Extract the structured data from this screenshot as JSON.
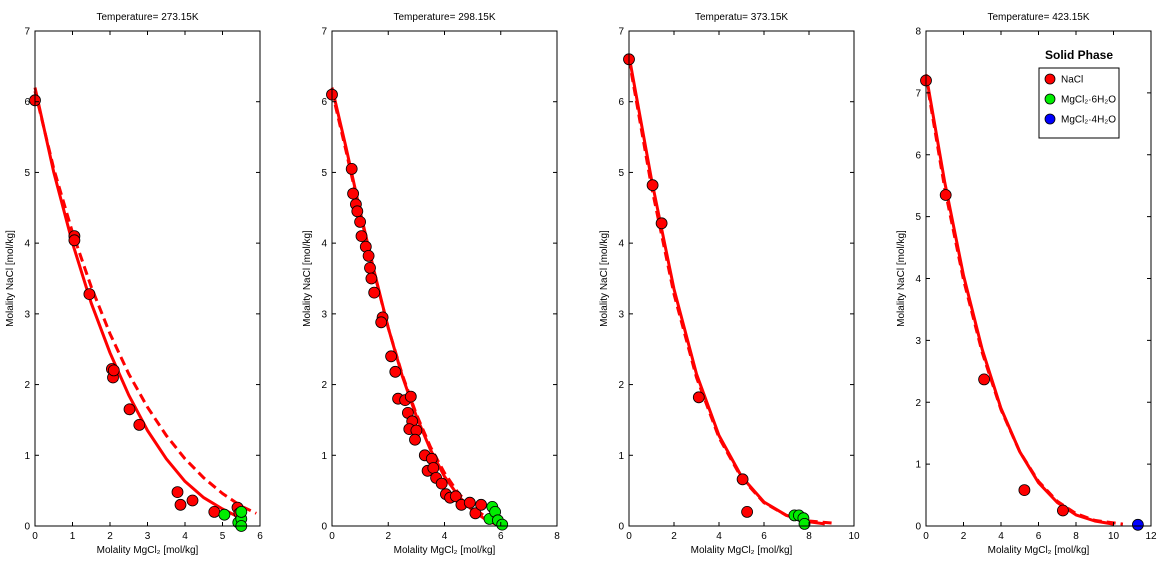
{
  "colors": {
    "nacl": "#ff0000",
    "mgcl2_6h2o": "#00ee00",
    "mgcl2_4h2o": "#0000ff",
    "model_line": "#ff0000"
  },
  "legend": {
    "title": "Solid Phase",
    "entries": [
      "NaCl",
      "MgCl₂·6H₂O",
      "MgCl₂·4H₂O"
    ]
  },
  "chart_data": [
    {
      "type": "scatter",
      "title": "Temperature= 273.15K",
      "xlabel": "Molality MgCl₂ [mol/kg]",
      "ylabel": "Molality NaCl [mol/kg]",
      "xlim": [
        0,
        6
      ],
      "ylim": [
        0,
        7
      ],
      "xticks": [
        0,
        1,
        2,
        3,
        4,
        5,
        6
      ],
      "yticks": [
        0,
        1,
        2,
        3,
        4,
        5,
        6,
        7
      ],
      "grid": false,
      "series": [
        {
          "phase": "nacl",
          "points": [
            [
              0,
              6.02
            ],
            [
              1.05,
              4.1
            ],
            [
              1.05,
              4.04
            ],
            [
              1.45,
              3.28
            ],
            [
              2.05,
              2.22
            ],
            [
              2.08,
              2.1
            ],
            [
              2.1,
              2.2
            ],
            [
              2.52,
              1.65
            ],
            [
              2.78,
              1.43
            ],
            [
              3.8,
              0.48
            ],
            [
              3.88,
              0.3
            ],
            [
              4.2,
              0.36
            ],
            [
              4.78,
              0.2
            ],
            [
              5.4,
              0.26
            ],
            [
              5.45,
              0.18
            ]
          ]
        },
        {
          "phase": "mgcl2_6h2o",
          "points": [
            [
              5.05,
              0.16
            ],
            [
              5.42,
              0.05
            ],
            [
              5.5,
              0.1
            ],
            [
              5.5,
              0.2
            ],
            [
              5.5,
              0.0
            ]
          ]
        },
        {
          "phase": "model_solid",
          "points": [
            [
              0,
              6.2
            ],
            [
              0.5,
              5.0
            ],
            [
              1.0,
              4.0
            ],
            [
              1.5,
              3.15
            ],
            [
              2.0,
              2.45
            ],
            [
              2.5,
              1.85
            ],
            [
              3.0,
              1.35
            ],
            [
              3.5,
              0.95
            ],
            [
              4.0,
              0.63
            ],
            [
              4.5,
              0.4
            ],
            [
              5.0,
              0.24
            ],
            [
              5.45,
              0.12
            ]
          ]
        },
        {
          "phase": "model_dashed",
          "points": [
            [
              0,
              6.15
            ],
            [
              0.5,
              5.05
            ],
            [
              1.0,
              4.15
            ],
            [
              1.5,
              3.38
            ],
            [
              2.0,
              2.72
            ],
            [
              2.5,
              2.15
            ],
            [
              3.0,
              1.68
            ],
            [
              3.5,
              1.28
            ],
            [
              4.0,
              0.95
            ],
            [
              4.5,
              0.68
            ],
            [
              5.0,
              0.46
            ],
            [
              5.5,
              0.28
            ],
            [
              5.9,
              0.18
            ]
          ]
        }
      ]
    },
    {
      "type": "scatter",
      "title": "Temperature= 298.15K",
      "xlabel": "Molality MgCl₂ [mol/kg]",
      "ylabel": "Molality NaCl [mol/kg]",
      "xlim": [
        0,
        8
      ],
      "ylim": [
        0,
        7
      ],
      "xticks": [
        0,
        2,
        4,
        6,
        8
      ],
      "yticks": [
        0,
        1,
        2,
        3,
        4,
        5,
        6,
        7
      ],
      "grid": false,
      "series": [
        {
          "phase": "nacl",
          "points": [
            [
              0,
              6.1
            ],
            [
              0.7,
              5.05
            ],
            [
              0.75,
              4.7
            ],
            [
              0.85,
              4.55
            ],
            [
              0.9,
              4.45
            ],
            [
              1.0,
              4.3
            ],
            [
              1.05,
              4.1
            ],
            [
              1.2,
              3.95
            ],
            [
              1.3,
              3.82
            ],
            [
              1.35,
              3.65
            ],
            [
              1.4,
              3.5
            ],
            [
              1.5,
              3.3
            ],
            [
              1.8,
              2.95
            ],
            [
              1.75,
              2.88
            ],
            [
              2.1,
              2.4
            ],
            [
              2.25,
              2.18
            ],
            [
              2.35,
              1.8
            ],
            [
              2.6,
              1.78
            ],
            [
              2.8,
              1.83
            ],
            [
              2.7,
              1.6
            ],
            [
              2.85,
              1.48
            ],
            [
              2.75,
              1.37
            ],
            [
              3.0,
              1.35
            ],
            [
              2.95,
              1.22
            ],
            [
              3.3,
              1.0
            ],
            [
              3.4,
              0.78
            ],
            [
              3.55,
              0.95
            ],
            [
              3.6,
              0.82
            ],
            [
              3.7,
              0.68
            ],
            [
              3.9,
              0.6
            ],
            [
              4.05,
              0.45
            ],
            [
              4.2,
              0.4
            ],
            [
              4.4,
              0.42
            ],
            [
              4.6,
              0.3
            ],
            [
              4.9,
              0.33
            ],
            [
              5.1,
              0.18
            ],
            [
              5.3,
              0.3
            ]
          ]
        },
        {
          "phase": "mgcl2_6h2o",
          "points": [
            [
              5.6,
              0.1
            ],
            [
              5.7,
              0.27
            ],
            [
              5.8,
              0.2
            ],
            [
              5.9,
              0.08
            ],
            [
              6.05,
              0.02
            ]
          ]
        },
        {
          "phase": "model_solid",
          "points": [
            [
              0,
              6.2
            ],
            [
              0.5,
              5.35
            ],
            [
              1.0,
              4.45
            ],
            [
              1.5,
              3.6
            ],
            [
              2.0,
              2.8
            ],
            [
              2.5,
              2.12
            ],
            [
              3.0,
              1.55
            ],
            [
              3.5,
              1.08
            ],
            [
              4.0,
              0.7
            ],
            [
              4.5,
              0.42
            ],
            [
              5.0,
              0.22
            ],
            [
              5.5,
              0.08
            ],
            [
              5.8,
              0.03
            ]
          ]
        },
        {
          "phase": "model_dashed",
          "points": [
            [
              0,
              6.15
            ],
            [
              0.5,
              5.3
            ],
            [
              1.0,
              4.42
            ],
            [
              1.5,
              3.58
            ],
            [
              2.0,
              2.8
            ],
            [
              2.5,
              2.14
            ],
            [
              3.0,
              1.58
            ],
            [
              3.5,
              1.12
            ],
            [
              4.0,
              0.75
            ],
            [
              4.5,
              0.46
            ],
            [
              5.0,
              0.26
            ],
            [
              5.5,
              0.12
            ],
            [
              5.9,
              0.05
            ]
          ]
        }
      ]
    },
    {
      "type": "scatter",
      "title": "Temperatu= 373.15K",
      "xlabel": "Molality MgCl₂ [mol/kg]",
      "ylabel": "Molality NaCl [mol/kg]",
      "xlim": [
        0,
        10
      ],
      "ylim": [
        0,
        7
      ],
      "xticks": [
        0,
        2,
        4,
        6,
        8,
        10
      ],
      "yticks": [
        0,
        1,
        2,
        3,
        4,
        5,
        6,
        7
      ],
      "grid": false,
      "series": [
        {
          "phase": "nacl",
          "points": [
            [
              0,
              6.6
            ],
            [
              1.05,
              4.82
            ],
            [
              1.45,
              4.28
            ],
            [
              3.1,
              1.82
            ],
            [
              5.05,
              0.66
            ],
            [
              5.25,
              0.2
            ]
          ]
        },
        {
          "phase": "mgcl2_6h2o",
          "points": [
            [
              7.35,
              0.15
            ],
            [
              7.55,
              0.15
            ],
            [
              7.75,
              0.11
            ],
            [
              7.8,
              0.03
            ]
          ]
        },
        {
          "phase": "model_solid",
          "points": [
            [
              0,
              6.65
            ],
            [
              1.0,
              4.9
            ],
            [
              2.0,
              3.35
            ],
            [
              3.0,
              2.15
            ],
            [
              4.0,
              1.28
            ],
            [
              5.0,
              0.7
            ],
            [
              6.0,
              0.34
            ],
            [
              7.0,
              0.15
            ],
            [
              8.0,
              0.06
            ],
            [
              8.7,
              0.03
            ]
          ]
        },
        {
          "phase": "model_dashed",
          "points": [
            [
              0,
              6.6
            ],
            [
              1.0,
              4.8
            ],
            [
              2.0,
              3.28
            ],
            [
              3.0,
              2.1
            ],
            [
              4.0,
              1.25
            ],
            [
              5.0,
              0.68
            ],
            [
              6.0,
              0.33
            ],
            [
              7.0,
              0.15
            ],
            [
              8.0,
              0.07
            ],
            [
              9.1,
              0.04
            ]
          ]
        }
      ]
    },
    {
      "type": "scatter",
      "title": "Temperature= 423.15K",
      "xlabel": "Molality MgCl₂ [mol/kg]",
      "ylabel": "Molality NaCl [mol/kg]",
      "xlim": [
        0,
        12
      ],
      "ylim": [
        0,
        8
      ],
      "xticks": [
        0,
        2,
        4,
        6,
        8,
        10,
        12
      ],
      "yticks": [
        0,
        1,
        2,
        3,
        4,
        5,
        6,
        7,
        8
      ],
      "grid": false,
      "legend_position": "top-right",
      "series": [
        {
          "phase": "nacl",
          "points": [
            [
              0,
              7.2
            ],
            [
              1.05,
              5.35
            ],
            [
              3.1,
              2.37
            ],
            [
              5.25,
              0.58
            ],
            [
              7.3,
              0.25
            ]
          ]
        },
        {
          "phase": "mgcl2_4h2o",
          "points": [
            [
              11.3,
              0.02
            ]
          ]
        },
        {
          "phase": "model_solid",
          "points": [
            [
              0,
              7.3
            ],
            [
              1.0,
              5.55
            ],
            [
              2.0,
              4.05
            ],
            [
              3.0,
              2.85
            ],
            [
              4.0,
              1.9
            ],
            [
              5.0,
              1.2
            ],
            [
              6.0,
              0.7
            ],
            [
              7.0,
              0.38
            ],
            [
              8.0,
              0.18
            ],
            [
              9.0,
              0.08
            ],
            [
              10.0,
              0.03
            ]
          ]
        },
        {
          "phase": "model_dashed",
          "points": [
            [
              0,
              7.25
            ],
            [
              1.0,
              5.45
            ],
            [
              2.0,
              3.98
            ],
            [
              3.0,
              2.8
            ],
            [
              4.0,
              1.88
            ],
            [
              5.0,
              1.2
            ],
            [
              6.0,
              0.72
            ],
            [
              7.0,
              0.4
            ],
            [
              8.0,
              0.2
            ],
            [
              9.0,
              0.09
            ],
            [
              10.5,
              0.03
            ]
          ]
        }
      ]
    }
  ]
}
